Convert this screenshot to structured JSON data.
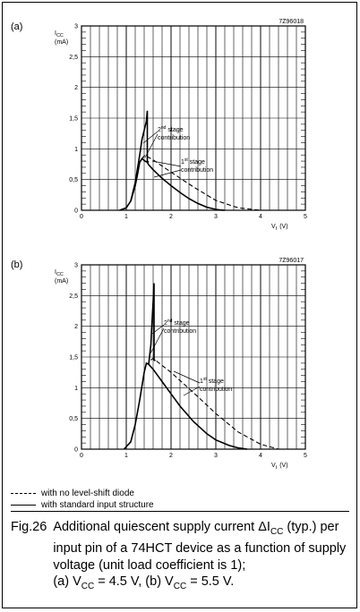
{
  "caption": {
    "number": "Fig.26",
    "line1": "Additional quiescent supply current ΔI",
    "sub1": "CC",
    "line1b": " (typ.) per input pin of a 74HCT device as a function of supply voltage (unit load coefficient is 1);",
    "line2a": "(a) V",
    "sub2": "CC",
    "line2b": " = 4.5 V, (b) V",
    "sub3": "CC",
    "line2c": " = 5.5 V."
  },
  "legend": {
    "dashed": "with no level-shift diode",
    "solid": "with standard input structure"
  },
  "chart_data": [
    {
      "type": "line",
      "panel": "(a)",
      "code": "7Z96018",
      "ylabel": "I",
      "ylabel_sub": "CC",
      "yunit": "(mA)",
      "xlabel": "V",
      "xlabel_sub": "I",
      "xunit": "(V)",
      "xlim": [
        0,
        5
      ],
      "ylim": [
        0,
        3
      ],
      "xticks": [
        "0",
        "1",
        "2",
        "3",
        "4",
        "5"
      ],
      "yticks": [
        "0",
        "0,5",
        "1",
        "1,5",
        "2",
        "2,5",
        "3"
      ],
      "grid": true,
      "annotations": [
        {
          "sup": "nd",
          "pre": "2",
          "post": " stage",
          "line2": "contribution"
        },
        {
          "sup": "st",
          "pre": "1",
          "post": " stage",
          "line2": "contribution"
        }
      ],
      "series": [
        {
          "style": "solid",
          "x": [
            0.85,
            1.0,
            1.1,
            1.2,
            1.25,
            1.3,
            1.35,
            1.42,
            1.47,
            1.5,
            1.6,
            1.8,
            2.0,
            2.2,
            2.4,
            2.6,
            2.8,
            3.0,
            3.1,
            3.2
          ],
          "y": [
            0,
            0.04,
            0.15,
            0.4,
            0.58,
            0.78,
            0.84,
            0.8,
            0.78,
            0.74,
            0.66,
            0.52,
            0.4,
            0.29,
            0.19,
            0.11,
            0.05,
            0.015,
            0.005,
            0
          ]
        },
        {
          "style": "dashed",
          "x": [
            1.35,
            1.42,
            1.5,
            1.6,
            1.8,
            2.0,
            2.5,
            3.0,
            3.5,
            4.0
          ],
          "y": [
            0.84,
            0.9,
            0.86,
            0.82,
            0.72,
            0.62,
            0.38,
            0.16,
            0.04,
            0
          ]
        },
        {
          "style": "solid",
          "x": [
            1.1,
            1.2,
            1.3,
            1.35,
            1.4,
            1.45,
            1.47,
            1.47,
            1.5
          ],
          "y": [
            0.15,
            0.45,
            0.9,
            1.15,
            1.3,
            1.45,
            1.62,
            0.8,
            0.78
          ]
        }
      ]
    },
    {
      "type": "line",
      "panel": "(b)",
      "code": "7Z96017",
      "ylabel": "I",
      "ylabel_sub": "CC",
      "yunit": "(mA)",
      "xlabel": "V",
      "xlabel_sub": "I",
      "xunit": "(V)",
      "xlim": [
        0,
        5
      ],
      "ylim": [
        0,
        3
      ],
      "xticks": [
        "0",
        "1",
        "2",
        "3",
        "4",
        "5"
      ],
      "yticks": [
        "0",
        "0,5",
        "1",
        "1,5",
        "2",
        "2,5",
        "3"
      ],
      "grid": true,
      "annotations": [
        {
          "sup": "nd",
          "pre": "2",
          "post": " stage",
          "line2": "contribution"
        },
        {
          "sup": "st",
          "pre": "1",
          "post": " stage",
          "line2": "contribution"
        }
      ],
      "series": [
        {
          "style": "solid",
          "x": [
            0.95,
            1.1,
            1.2,
            1.3,
            1.4,
            1.45,
            1.5,
            1.6,
            1.8,
            2.0,
            2.2,
            2.5,
            2.8,
            3.0,
            3.3,
            3.5,
            3.7
          ],
          "y": [
            0,
            0.12,
            0.4,
            0.8,
            1.25,
            1.4,
            1.38,
            1.3,
            1.1,
            0.9,
            0.7,
            0.45,
            0.25,
            0.15,
            0.06,
            0.02,
            0
          ]
        },
        {
          "style": "dashed",
          "x": [
            1.55,
            1.6,
            1.7,
            2.0,
            2.5,
            3.0,
            3.5,
            4.0,
            4.4
          ],
          "y": [
            1.45,
            1.48,
            1.42,
            1.25,
            0.92,
            0.58,
            0.28,
            0.08,
            0
          ]
        },
        {
          "style": "solid",
          "x": [
            1.5,
            1.55,
            1.57,
            1.6,
            1.62,
            1.62,
            1.65
          ],
          "y": [
            1.38,
            1.7,
            2.0,
            2.4,
            2.7,
            1.45,
            1.44
          ]
        }
      ]
    }
  ]
}
